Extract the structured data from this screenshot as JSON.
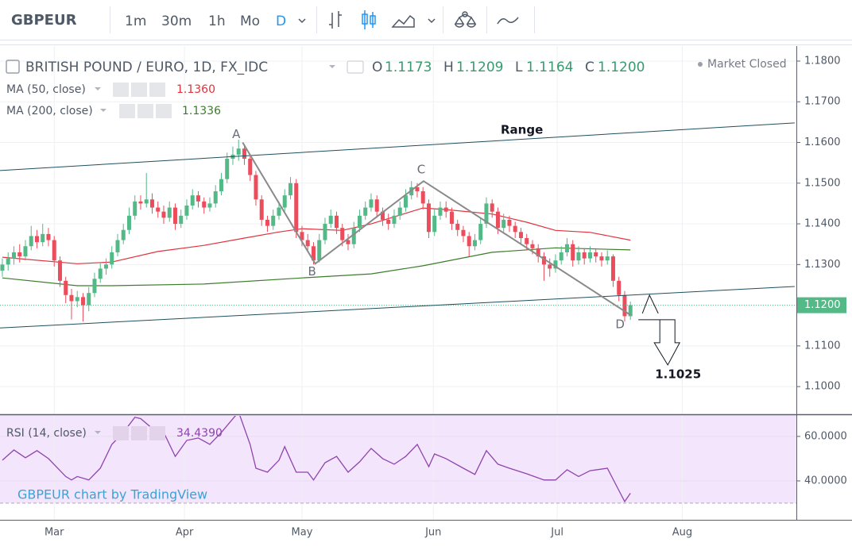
{
  "toolbar": {
    "symbol": "GBPEUR",
    "intervals": [
      "1m",
      "30m",
      "1h",
      "Mo",
      "D"
    ]
  },
  "chart_data": [
    {
      "type": "candlestick",
      "title": "BRITISH POUND / EURO, 1D, FX_IDC",
      "legend": {
        "o": "O",
        "open": "1.1173",
        "h": "H",
        "high": "1.1209",
        "l": "L",
        "low": "1.1164",
        "c": "C",
        "close": "1.1200"
      },
      "status": "Market Closed",
      "up_color": "#53b987",
      "down_color": "#eb4d5c",
      "open": [
        1.1285,
        1.13,
        1.1315,
        1.133,
        1.132,
        1.1345,
        1.137,
        1.1355,
        1.1375,
        1.136,
        1.131,
        1.126,
        1.1225,
        1.121,
        1.122,
        1.12,
        1.123,
        1.1265,
        1.129,
        1.13,
        1.133,
        1.136,
        1.1385,
        1.142,
        1.1455,
        1.145,
        1.146,
        1.144,
        1.143,
        1.1415,
        1.144,
        1.14,
        1.142,
        1.1445,
        1.147,
        1.1455,
        1.144,
        1.145,
        1.148,
        1.151,
        1.156,
        1.157,
        1.1585,
        1.156,
        1.152,
        1.146,
        1.141,
        1.1395,
        1.142,
        1.144,
        1.147,
        1.15,
        1.138,
        1.136,
        1.1345,
        1.131,
        1.136,
        1.14,
        1.142,
        1.139,
        1.136,
        1.135,
        1.139,
        1.142,
        1.144,
        1.146,
        1.143,
        1.141,
        1.14,
        1.142,
        1.144,
        1.147,
        1.149,
        1.148,
        1.145,
        1.138,
        1.142,
        1.144,
        1.143,
        1.14,
        1.1385,
        1.137,
        1.1345,
        1.136,
        1.14,
        1.145,
        1.143,
        1.139,
        1.141,
        1.1395,
        1.138,
        1.1365,
        1.135,
        1.134,
        1.132,
        1.13,
        1.129,
        1.131,
        1.133,
        1.135,
        1.131,
        1.133,
        1.1315,
        1.133,
        1.132,
        1.131,
        1.132,
        1.126,
        1.1225,
        1.1173
      ],
      "high": [
        1.1315,
        1.133,
        1.1345,
        1.135,
        1.136,
        1.1395,
        1.1385,
        1.14,
        1.139,
        1.137,
        1.132,
        1.127,
        1.124,
        1.1235,
        1.123,
        1.1245,
        1.128,
        1.1305,
        1.1315,
        1.1345,
        1.1375,
        1.14,
        1.144,
        1.147,
        1.147,
        1.1525,
        1.1475,
        1.1455,
        1.1445,
        1.1455,
        1.145,
        1.1435,
        1.146,
        1.1485,
        1.148,
        1.1465,
        1.1465,
        1.1495,
        1.1525,
        1.1575,
        1.159,
        1.1607,
        1.1595,
        1.157,
        1.153,
        1.147,
        1.142,
        1.1435,
        1.1455,
        1.1485,
        1.1515,
        1.151,
        1.1395,
        1.1375,
        1.1355,
        1.1375,
        1.1415,
        1.1435,
        1.143,
        1.14,
        1.1375,
        1.1405,
        1.1435,
        1.1455,
        1.1475,
        1.147,
        1.144,
        1.1425,
        1.1435,
        1.1455,
        1.1485,
        1.1505,
        1.15,
        1.149,
        1.146,
        1.1435,
        1.1455,
        1.1455,
        1.144,
        1.141,
        1.1395,
        1.138,
        1.1375,
        1.1415,
        1.1465,
        1.146,
        1.144,
        1.1425,
        1.142,
        1.1405,
        1.139,
        1.1375,
        1.136,
        1.135,
        1.133,
        1.1315,
        1.1325,
        1.1345,
        1.1365,
        1.136,
        1.1345,
        1.134,
        1.1345,
        1.134,
        1.133,
        1.1335,
        1.1325,
        1.127,
        1.1235,
        1.1209
      ],
      "low": [
        1.127,
        1.1285,
        1.13,
        1.1305,
        1.131,
        1.1335,
        1.134,
        1.1345,
        1.1345,
        1.1295,
        1.1245,
        1.1205,
        1.1165,
        1.1195,
        1.116,
        1.1185,
        1.122,
        1.1255,
        1.1275,
        1.129,
        1.132,
        1.135,
        1.1375,
        1.141,
        1.1435,
        1.144,
        1.1425,
        1.1415,
        1.14,
        1.1405,
        1.1385,
        1.139,
        1.141,
        1.1435,
        1.144,
        1.1425,
        1.143,
        1.144,
        1.147,
        1.15,
        1.1545,
        1.1555,
        1.1545,
        1.1505,
        1.1445,
        1.1395,
        1.138,
        1.1385,
        1.141,
        1.143,
        1.146,
        1.1365,
        1.1345,
        1.133,
        1.13,
        1.1305,
        1.135,
        1.139,
        1.1375,
        1.1345,
        1.1335,
        1.134,
        1.138,
        1.141,
        1.143,
        1.1415,
        1.1395,
        1.1385,
        1.139,
        1.141,
        1.143,
        1.146,
        1.1465,
        1.1435,
        1.1365,
        1.137,
        1.141,
        1.1415,
        1.1385,
        1.137,
        1.1355,
        1.132,
        1.1335,
        1.135,
        1.139,
        1.1415,
        1.1375,
        1.138,
        1.138,
        1.1365,
        1.135,
        1.1335,
        1.1325,
        1.1305,
        1.126,
        1.127,
        1.128,
        1.13,
        1.132,
        1.1295,
        1.13,
        1.13,
        1.1305,
        1.1305,
        1.1295,
        1.13,
        1.1245,
        1.121,
        1.116,
        1.1164
      ],
      "close": [
        1.13,
        1.1315,
        1.133,
        1.132,
        1.1345,
        1.137,
        1.1355,
        1.1375,
        1.136,
        1.131,
        1.126,
        1.1225,
        1.121,
        1.122,
        1.12,
        1.123,
        1.1265,
        1.129,
        1.13,
        1.133,
        1.136,
        1.1385,
        1.142,
        1.1455,
        1.145,
        1.146,
        1.144,
        1.143,
        1.1415,
        1.144,
        1.14,
        1.142,
        1.1445,
        1.147,
        1.1455,
        1.144,
        1.145,
        1.148,
        1.151,
        1.156,
        1.157,
        1.1585,
        1.156,
        1.152,
        1.146,
        1.141,
        1.1395,
        1.142,
        1.144,
        1.147,
        1.15,
        1.138,
        1.136,
        1.1345,
        1.131,
        1.136,
        1.14,
        1.142,
        1.139,
        1.136,
        1.135,
        1.139,
        1.142,
        1.144,
        1.146,
        1.143,
        1.141,
        1.14,
        1.142,
        1.144,
        1.147,
        1.149,
        1.148,
        1.145,
        1.138,
        1.142,
        1.144,
        1.143,
        1.14,
        1.1385,
        1.137,
        1.1345,
        1.136,
        1.14,
        1.145,
        1.143,
        1.139,
        1.141,
        1.1395,
        1.138,
        1.1365,
        1.135,
        1.134,
        1.132,
        1.13,
        1.129,
        1.131,
        1.133,
        1.135,
        1.131,
        1.133,
        1.1315,
        1.133,
        1.132,
        1.131,
        1.132,
        1.126,
        1.1225,
        1.1173,
        1.12
      ],
      "series": [
        {
          "name": "MA (50, close)",
          "color": "#e0323c",
          "value_label": "1.1360",
          "x": [
            0,
            13,
            19,
            27,
            35,
            42,
            48,
            52,
            59,
            64,
            73,
            77,
            85,
            91,
            96,
            102,
            109
          ],
          "values": [
            1.1318,
            1.1302,
            1.1306,
            1.1332,
            1.1347,
            1.1365,
            1.138,
            1.1388,
            1.1384,
            1.14,
            1.1439,
            1.1435,
            1.1424,
            1.1404,
            1.1384,
            1.1379,
            1.136
          ]
        },
        {
          "name": "MA (200, close)",
          "color": "#3b7d2b",
          "value_label": "1.1336",
          "x": [
            0,
            13,
            19,
            35,
            52,
            64,
            73,
            85,
            96,
            109
          ],
          "values": [
            1.1267,
            1.1248,
            1.1248,
            1.1252,
            1.1267,
            1.1277,
            1.1297,
            1.133,
            1.1341,
            1.1336
          ]
        }
      ],
      "xlim": [
        -0.41,
        137.8
      ],
      "ylim": [
        1.0932,
        1.1837
      ],
      "yticks": [
        {
          "value": 1.1,
          "label": "1.1000"
        },
        {
          "value": 1.11,
          "label": "1.1100"
        },
        {
          "value": 1.12,
          "label": "1.1200"
        },
        {
          "value": 1.13,
          "label": "1.1300"
        },
        {
          "value": 1.14,
          "label": "1.1400"
        },
        {
          "value": 1.15,
          "label": "1.1500"
        },
        {
          "value": 1.16,
          "label": "1.1600"
        },
        {
          "value": 1.17,
          "label": "1.1700"
        },
        {
          "value": 1.18,
          "label": "1.1800"
        }
      ],
      "xticks": [
        {
          "value": 9,
          "label": "Mar"
        },
        {
          "value": 31.6,
          "label": "Apr"
        },
        {
          "value": 52,
          "label": "May"
        },
        {
          "value": 74.8,
          "label": "Jun"
        },
        {
          "value": 96.3,
          "label": "Jul"
        },
        {
          "value": 118,
          "label": "Aug"
        }
      ],
      "grid": true,
      "last_price_label": "1.1200",
      "annotations": {
        "range_label": "Range",
        "lines": [
          {
            "x": [
              -0.41,
              137.5
            ],
            "y": [
              1.1531,
              1.1648
            ]
          },
          {
            "x": [
              -0.41,
              137.5
            ],
            "y": [
              1.1144,
              1.1246
            ]
          }
        ],
        "pattern": [
          {
            "label": "A",
            "x": 41.7,
            "y": 1.16
          },
          {
            "label": "B",
            "x": 54.3,
            "y": 1.1302
          },
          {
            "label": "C",
            "x": 73.1,
            "y": 1.1505
          },
          {
            "label": "D",
            "x": 109,
            "y": 1.1176
          }
        ],
        "target_label": "1.1025"
      }
    },
    {
      "type": "line",
      "watermark": "GBPEUR chart by TradingView",
      "series": [
        {
          "name": "RSI (14, close)",
          "color": "#8e44ad",
          "value_label": "34.4390",
          "x": [
            0,
            2,
            4,
            6,
            8,
            11,
            12,
            13,
            15,
            17,
            19,
            21,
            23,
            24,
            26,
            28,
            30,
            32,
            34,
            36,
            38,
            41,
            43,
            44,
            46,
            48,
            49,
            51,
            53,
            54,
            56,
            58,
            60,
            62,
            64,
            66,
            68,
            70,
            72,
            74,
            75,
            77,
            80,
            82,
            84,
            86,
            88,
            91,
            94,
            96,
            98,
            100,
            102,
            105,
            107,
            108,
            109
          ],
          "values": [
            49.3,
            53.9,
            50.4,
            53.6,
            50,
            42,
            40.4,
            42,
            40.4,
            45.7,
            56.4,
            61.8,
            68.6,
            68,
            63.6,
            61.8,
            51,
            58.2,
            59.3,
            56.4,
            61.8,
            71,
            56.4,
            45.7,
            43.9,
            49.3,
            55.4,
            43.9,
            43.9,
            40.4,
            48.2,
            51,
            43.9,
            48.6,
            54.6,
            50,
            47.5,
            51,
            56.4,
            46.4,
            52.1,
            50,
            45.7,
            42.9,
            53.6,
            47.5,
            45.7,
            43.2,
            40.4,
            40.4,
            45,
            42,
            44.6,
            45.7,
            35.7,
            30.7,
            34.439
          ]
        }
      ],
      "ylim": [
        22.5,
        69.6
      ],
      "yticks": [
        {
          "value": 40,
          "label": "40.0000"
        },
        {
          "value": 60,
          "label": "60.0000"
        }
      ],
      "band": [
        30,
        70
      ]
    }
  ]
}
